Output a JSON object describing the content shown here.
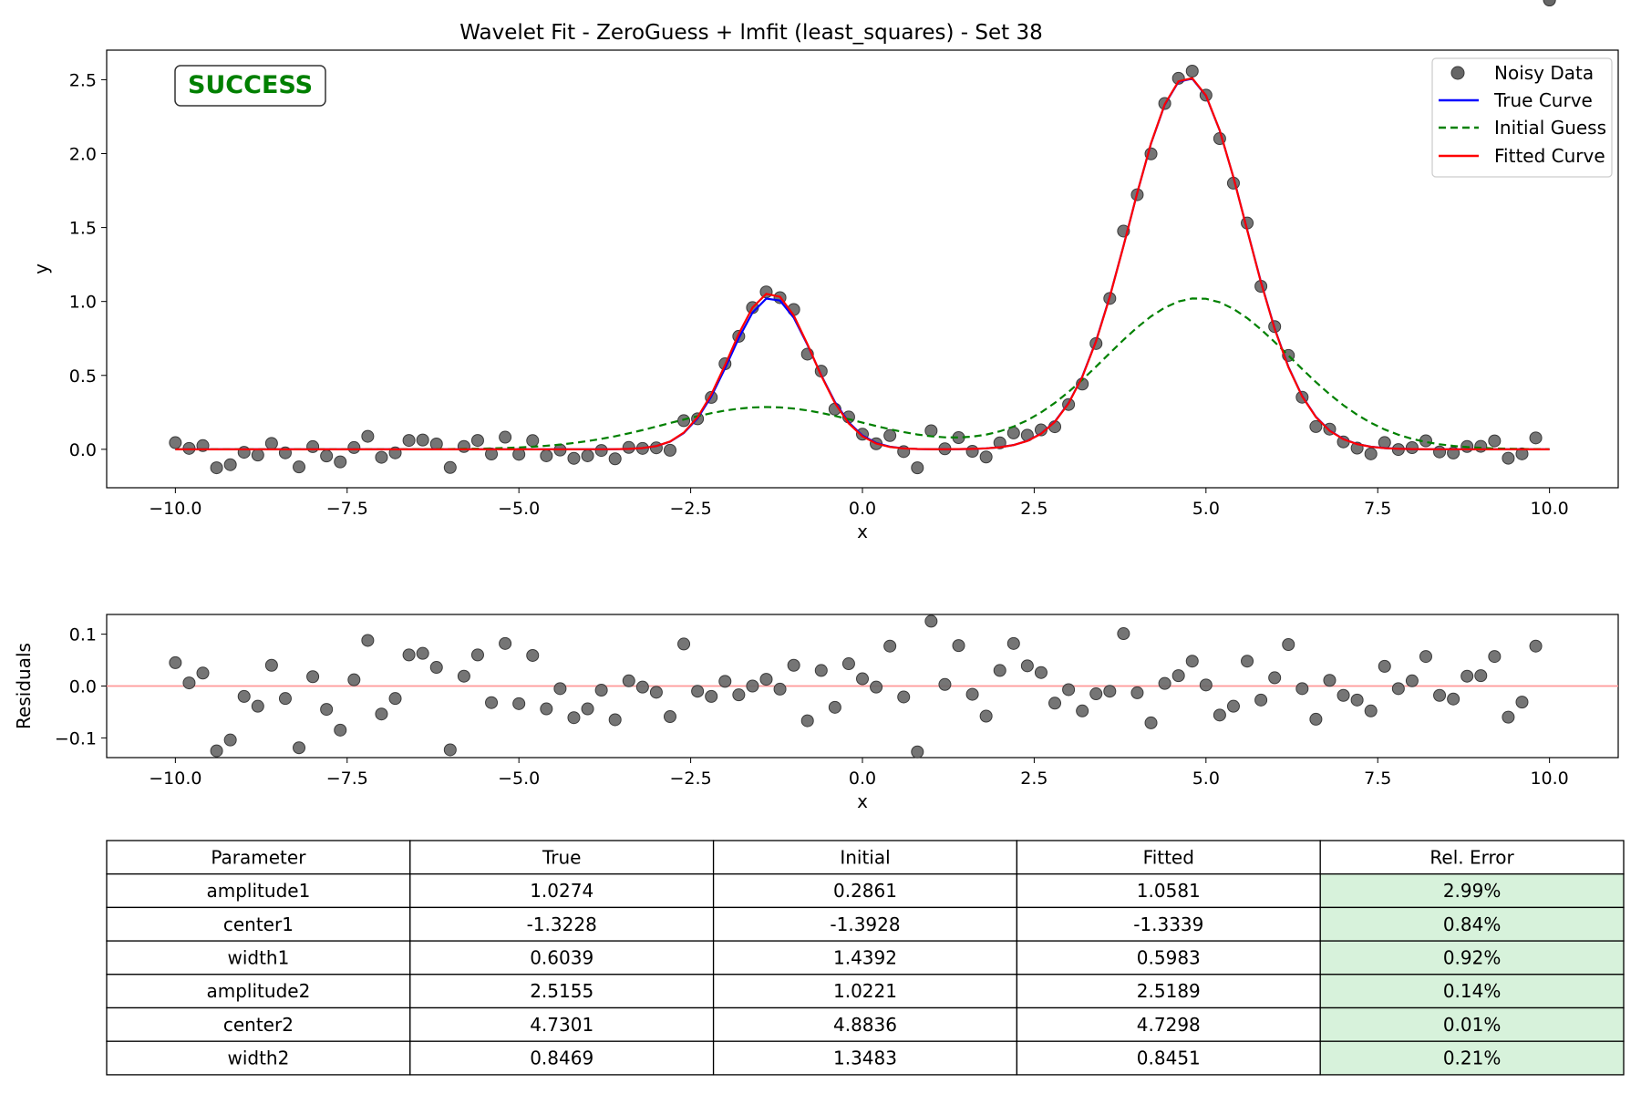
{
  "chart_data": [
    {
      "type": "line",
      "title": "Wavelet Fit - ZeroGuess + lmfit (least_squares) - Set 38",
      "xlabel": "x",
      "ylabel": "y",
      "xlim": [
        -11,
        11
      ],
      "ylim": [
        -0.26,
        2.7
      ],
      "xticks": [
        -10,
        -7.5,
        -5,
        -2.5,
        0,
        2.5,
        5,
        7.5,
        10
      ],
      "xtick_labels": [
        "−10.0",
        "−7.5",
        "−5.0",
        "−2.5",
        "0.0",
        "2.5",
        "5.0",
        "7.5",
        "10.0"
      ],
      "yticks": [
        0,
        0.5,
        1,
        1.5,
        2,
        2.5
      ],
      "ytick_labels": [
        "0.0",
        "0.5",
        "1.0",
        "1.5",
        "2.0",
        "2.5"
      ],
      "grid": false,
      "legend_position": "top-right",
      "status_badge": {
        "text": "SUCCESS",
        "color": "#008000"
      },
      "series": [
        {
          "name": "Noisy Data",
          "kind": "scatter",
          "color": "#666666"
        },
        {
          "name": "True Curve",
          "kind": "line",
          "color": "#0000ff",
          "params": {
            "amplitude1": 1.0274,
            "center1": -1.3228,
            "width1": 0.6039,
            "amplitude2": 2.5155,
            "center2": 4.7301,
            "width2": 0.8469
          }
        },
        {
          "name": "Initial Guess",
          "kind": "line",
          "style": "dashed",
          "color": "#008000",
          "params": {
            "amplitude1": 0.2861,
            "center1": -1.3928,
            "width1": 1.4392,
            "amplitude2": 1.0221,
            "center2": 4.8836,
            "width2": 1.3483
          }
        },
        {
          "name": "Fitted Curve",
          "kind": "line",
          "color": "#ff0000",
          "params": {
            "amplitude1": 1.0581,
            "center1": -1.3339,
            "width1": 0.5983,
            "amplitude2": 2.5189,
            "center2": 4.7298,
            "width2": 0.8451
          }
        }
      ],
      "x_sample": {
        "start": -10,
        "end": 10,
        "count": 101
      }
    },
    {
      "type": "scatter",
      "title": "",
      "xlabel": "x",
      "ylabel": "Residuals",
      "xlim": [
        -11,
        11
      ],
      "ylim": [
        -0.138,
        0.138
      ],
      "xticks": [
        -10,
        -7.5,
        -5,
        -2.5,
        0,
        2.5,
        5,
        7.5,
        10
      ],
      "xtick_labels": [
        "−10.0",
        "−7.5",
        "−5.0",
        "−2.5",
        "0.0",
        "2.5",
        "5.0",
        "7.5",
        "10.0"
      ],
      "yticks": [
        -0.1,
        0,
        0.1
      ],
      "ytick_labels": [
        "−0.1",
        "0.0",
        "0.1"
      ],
      "reference_line": {
        "y": 0,
        "color": "#ff9999"
      },
      "residuals": [
        0.045,
        0.006,
        0.025,
        -0.125,
        -0.104,
        -0.02,
        -0.039,
        0.04,
        -0.024,
        -0.119,
        0.018,
        -0.045,
        -0.085,
        0.012,
        0.088,
        -0.054,
        -0.024,
        0.06,
        0.063,
        0.036,
        -0.123,
        0.019,
        0.06,
        -0.032,
        0.082,
        -0.034,
        0.059,
        -0.044,
        -0.005,
        -0.061,
        -0.044,
        -0.008,
        -0.065,
        0.01,
        -0.002,
        -0.012,
        -0.059,
        0.081,
        -0.01,
        -0.02,
        0.009,
        -0.017,
        0.0,
        0.013,
        -0.006,
        0.04,
        -0.067,
        0.03,
        -0.041,
        0.043,
        0.014,
        -0.002,
        0.077,
        -0.021,
        -0.127,
        0.125,
        0.003,
        0.078,
        -0.016,
        -0.058,
        0.03,
        0.082,
        0.039,
        0.026,
        -0.033,
        -0.007,
        -0.048,
        -0.015,
        -0.01,
        0.101,
        -0.013,
        -0.071,
        0.005,
        0.02,
        0.048,
        0.002,
        -0.056,
        -0.039,
        0.048,
        -0.027,
        0.016,
        0.08,
        -0.005,
        -0.064,
        0.011,
        -0.018,
        -0.027,
        -0.048,
        0.038,
        -0.005,
        0.01,
        0.057,
        -0.018,
        -0.025,
        0.019,
        0.02,
        0.057,
        -0.06,
        -0.031,
        0.077
      ]
    },
    {
      "type": "table",
      "columns": [
        "Parameter",
        "True",
        "Initial",
        "Fitted",
        "Rel. Error"
      ],
      "rows": [
        [
          "amplitude1",
          "1.0274",
          "0.2861",
          "1.0581",
          "2.99%"
        ],
        [
          "center1",
          "-1.3228",
          "-1.3928",
          "-1.3339",
          "0.84%"
        ],
        [
          "width1",
          "0.6039",
          "1.4392",
          "0.5983",
          "0.92%"
        ],
        [
          "amplitude2",
          "2.5155",
          "1.0221",
          "2.5189",
          "0.14%"
        ],
        [
          "center2",
          "4.7301",
          "4.8836",
          "4.7298",
          "0.01%"
        ],
        [
          "width2",
          "0.8469",
          "1.3483",
          "0.8451",
          "0.21%"
        ]
      ],
      "highlight_color": "#d7f2db"
    }
  ]
}
